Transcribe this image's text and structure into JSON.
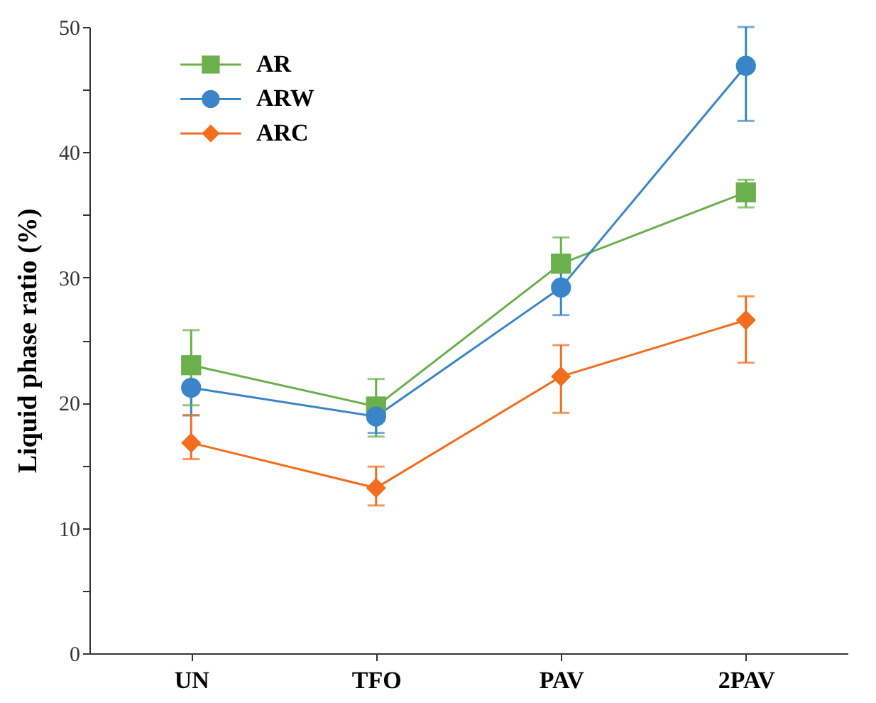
{
  "chart_data": {
    "type": "line",
    "ylabel": "Liquid phase ratio (%)",
    "categories": [
      "UN",
      "TFO",
      "PAV",
      "2PAV"
    ],
    "series": [
      {
        "name": "AR",
        "color": "#6ab04c",
        "marker": "square",
        "values": [
          23.0,
          19.7,
          31.1,
          36.8
        ],
        "errors": [
          [
            19.8,
            25.8
          ],
          [
            17.3,
            21.9
          ],
          [
            31.1,
            33.2
          ],
          [
            35.6,
            37.8
          ]
        ]
      },
      {
        "name": "ARW",
        "color": "#3a85c8",
        "marker": "circle",
        "values": [
          21.2,
          18.9,
          29.2,
          46.9
        ],
        "errors": [
          [
            19.0,
            21.2
          ],
          [
            17.6,
            18.9
          ],
          [
            27.0,
            31.8
          ],
          [
            42.5,
            50.0
          ]
        ]
      },
      {
        "name": "ARC",
        "color": "#f26d1d",
        "marker": "diamond",
        "values": [
          16.8,
          13.2,
          22.1,
          26.6
        ],
        "errors": [
          [
            15.5,
            19.0
          ],
          [
            11.8,
            14.9
          ],
          [
            19.2,
            24.6
          ],
          [
            23.2,
            28.5
          ]
        ]
      }
    ],
    "ylim": [
      0,
      50
    ],
    "yticks": [
      0,
      {
        "value": 5,
        "label": null
      },
      10,
      {
        "value": 15,
        "label": null
      },
      20,
      {
        "value": 25,
        "label": null
      },
      30,
      {
        "value": 35,
        "label": null
      },
      40,
      {
        "value": 45,
        "label": null
      },
      50
    ],
    "grid": false,
    "legend": "top left",
    "line_style": "solid"
  }
}
